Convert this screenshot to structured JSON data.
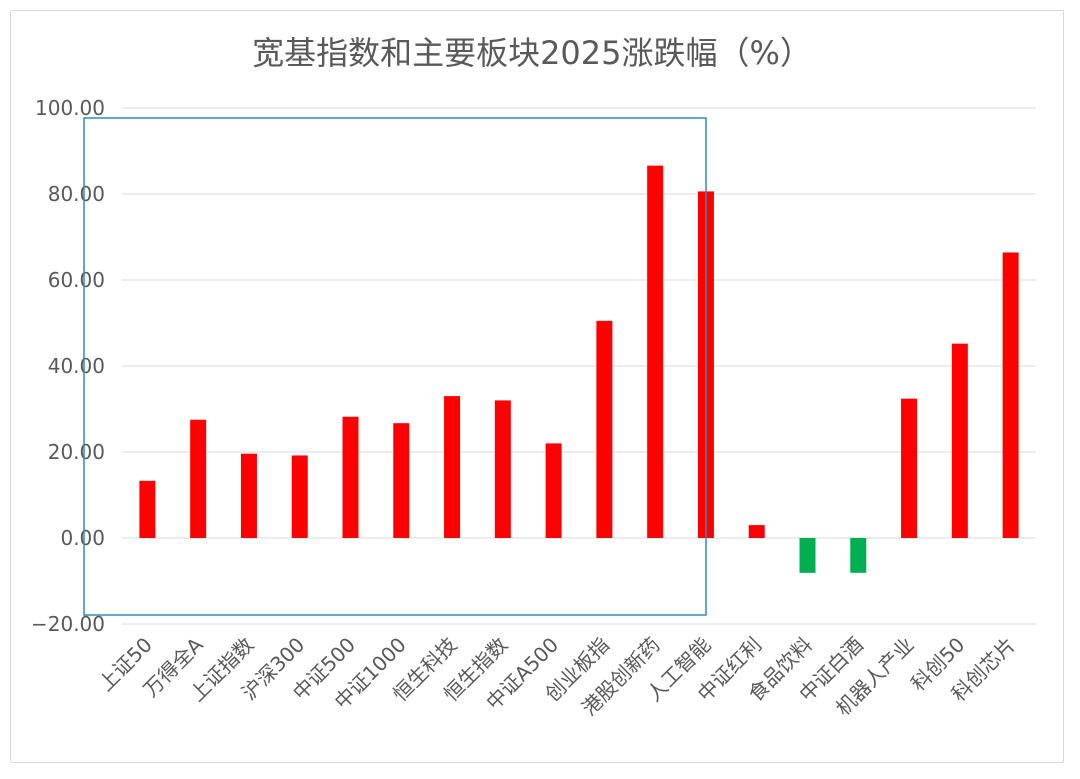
{
  "chart_data": {
    "type": "bar",
    "title": "宽基指数和主要板块2025涨跌幅（%）",
    "xlabel": "",
    "ylabel": "",
    "ylim": [
      -20,
      100
    ],
    "yticks": [
      "100.00",
      "80.00",
      "60.00",
      "40.00",
      "20.00",
      "0.00",
      "−20.00"
    ],
    "ytick_values": [
      100,
      80,
      60,
      40,
      20,
      0,
      -20
    ],
    "grid": true,
    "legend": "none",
    "categories": [
      "上证50",
      "万得全A",
      "上证指数",
      "沪深300",
      "中证500",
      "中证1000",
      "恒生科技",
      "恒生指数",
      "中证A500",
      "创业板指",
      "港股创新药",
      "人工智能",
      "中证红利",
      "食品饮料",
      "中证白酒",
      "机器人产业",
      "科创50",
      "科创芯片"
    ],
    "values": [
      13.3,
      27.5,
      19.6,
      19.2,
      28.2,
      26.7,
      33.0,
      32.0,
      22.0,
      50.5,
      86.6,
      80.6,
      3.0,
      -8.1,
      -8.1,
      32.4,
      45.2,
      66.4
    ],
    "colors": {
      "positive": "#ff0000",
      "negative": "#00b050",
      "grid": "#d9d9d9",
      "highlight_box": "#2e8bc0"
    }
  }
}
